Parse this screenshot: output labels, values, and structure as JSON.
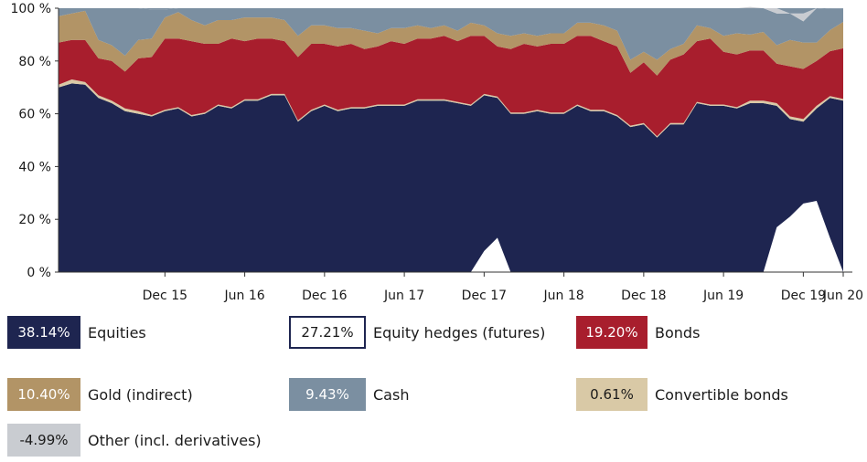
{
  "chart_data": {
    "type": "area",
    "stacked": true,
    "ylim": [
      0,
      100
    ],
    "yticks": [
      "0 %",
      "20 %",
      "40 %",
      "60 %",
      "80 %",
      "100 %"
    ],
    "ytick_values": [
      0,
      20,
      40,
      60,
      80,
      100
    ],
    "xticks": [
      "Dec 15",
      "Jun 16",
      "Dec 16",
      "Jun 17",
      "Dec 17",
      "Jun 18",
      "Dec 18",
      "Jun 19",
      "Dec 19",
      "Jun 20"
    ],
    "x_start": "2015-04",
    "x_end": "2020-06",
    "grid": false,
    "legend_position": "bottom",
    "series": [
      {
        "name": "Equities",
        "color": "#1e2550",
        "values": [
          70,
          71.5,
          71,
          66,
          64,
          61,
          60,
          59,
          61,
          62,
          59,
          60,
          63,
          62,
          65,
          65,
          67,
          67,
          57,
          61,
          63,
          61,
          62,
          62,
          63,
          63,
          63,
          65,
          65,
          65,
          64,
          63,
          67,
          66,
          60,
          60,
          61,
          60,
          60,
          63,
          61,
          61,
          59,
          55,
          56,
          51,
          56,
          56,
          64,
          63,
          63,
          62,
          64,
          64,
          63,
          58,
          57,
          62,
          66,
          65
        ]
      },
      {
        "name": "Convertible bonds",
        "color": "#d9c9a6",
        "values": [
          1,
          1.5,
          1,
          1,
          1,
          1,
          1,
          0.5,
          0.5,
          0.5,
          0.5,
          0.5,
          0.5,
          0.5,
          0.5,
          0.5,
          0.5,
          0.5,
          0.5,
          0.5,
          0.5,
          0.5,
          0.5,
          0.5,
          0.5,
          0.5,
          0.5,
          0.5,
          0.5,
          0.5,
          0.5,
          0.5,
          0.5,
          0.5,
          0.5,
          0.5,
          0.5,
          0.5,
          0.5,
          0.5,
          0.5,
          0.5,
          0.5,
          0.5,
          0.5,
          0.5,
          0.5,
          0.5,
          0.5,
          0.5,
          0.5,
          0.5,
          1,
          1,
          1,
          1,
          1,
          1,
          0.7,
          0.6
        ]
      },
      {
        "name": "Bonds",
        "color": "#a81e2d",
        "values": [
          16,
          15,
          16,
          14,
          15,
          14,
          20,
          22,
          27,
          26,
          28,
          26,
          23,
          26,
          22,
          23,
          21,
          20,
          24,
          25,
          23,
          24,
          24,
          22,
          22,
          24,
          23,
          23,
          23,
          24,
          23,
          26,
          22,
          19,
          24,
          26,
          24,
          26,
          26,
          26,
          28,
          26,
          26,
          20,
          23,
          23,
          24,
          26,
          23,
          25,
          20,
          20,
          19,
          19,
          15,
          19,
          19,
          17,
          17,
          19.2
        ]
      },
      {
        "name": "Gold (indirect)",
        "color": "#b29466",
        "values": [
          10,
          10,
          11,
          7,
          6,
          6,
          7,
          7,
          8,
          10,
          8,
          7,
          9,
          7,
          9,
          8,
          8,
          8,
          8,
          7,
          7,
          7,
          6,
          7,
          5,
          5,
          6,
          5,
          4,
          4,
          4,
          5,
          4,
          5,
          5,
          4,
          4,
          4,
          4,
          5,
          5,
          6,
          6,
          5,
          4,
          6,
          4,
          4,
          6,
          4,
          6,
          8,
          6,
          7,
          7,
          10,
          10,
          7,
          8,
          10
        ]
      },
      {
        "name": "Cash",
        "color": "#7b8fa1",
        "values": [
          3,
          2,
          1,
          12,
          14,
          18,
          12,
          11,
          3,
          1.5,
          4.5,
          6.5,
          4.5,
          4.5,
          3.5,
          3.5,
          3.5,
          4.5,
          10.5,
          6.5,
          6.5,
          7.5,
          7.5,
          8.5,
          9.5,
          7.5,
          7.5,
          6.5,
          7.5,
          6.5,
          8.5,
          5.5,
          6.5,
          9.5,
          10.5,
          9.5,
          10.5,
          9.5,
          9.5,
          5.5,
          5.5,
          6.5,
          8.5,
          19.5,
          16.5,
          19.5,
          15.5,
          13.5,
          6.5,
          7.5,
          10.5,
          9.5,
          10.5,
          9,
          12,
          10,
          8,
          13,
          8,
          5
        ]
      },
      {
        "name": "Other (incl. derivatives)",
        "color": "#c9ccd1",
        "values": [
          0,
          0,
          0,
          0,
          0,
          0,
          0,
          0,
          0,
          0,
          0,
          0,
          0,
          0,
          0,
          0,
          0,
          0,
          0,
          0,
          0,
          0,
          0,
          0,
          0,
          0,
          0,
          0,
          0,
          0,
          0,
          0,
          0,
          0,
          0,
          0,
          0,
          0,
          0,
          0,
          0,
          0,
          0,
          0,
          0,
          0,
          0,
          0,
          0,
          0,
          0,
          0,
          0,
          0,
          2,
          0,
          3,
          0,
          0,
          0
        ]
      },
      {
        "name": "Equity hedges (futures)",
        "color": "#ffffff",
        "values": [
          0,
          0,
          0,
          0,
          0,
          0,
          0,
          0,
          0,
          0,
          0,
          0,
          0,
          0,
          0,
          0,
          0,
          0,
          0,
          0,
          0,
          0,
          0,
          0,
          0,
          0,
          0,
          0,
          0,
          0,
          0,
          0,
          0,
          0,
          0,
          0,
          0,
          0,
          0,
          0,
          0,
          0,
          0,
          0,
          0,
          0,
          0,
          0,
          0,
          0,
          0,
          0,
          0,
          0,
          0,
          0,
          0,
          0,
          0,
          0,
          0,
          0,
          0,
          0,
          0
        ],
        "overlay_from_zero": [
          0,
          0,
          0,
          0,
          0,
          0,
          0,
          0,
          0,
          0,
          0,
          0,
          0,
          0,
          0,
          0,
          0,
          0,
          0,
          0,
          0,
          0,
          0,
          0,
          0,
          0,
          0,
          0,
          0,
          0,
          0,
          0,
          8,
          13,
          0,
          0,
          0,
          0,
          0,
          0,
          0,
          0,
          0,
          0,
          0,
          0,
          0,
          0,
          0,
          0,
          0,
          0,
          0,
          0,
          17,
          21,
          26,
          27,
          13,
          0
        ]
      }
    ]
  },
  "legend": [
    {
      "value": "38.14%",
      "label": "Equities",
      "color": "#1e2550",
      "text_color": "#ffffff",
      "outlined": false
    },
    {
      "value": "27.21%",
      "label": "Equity hedges (futures)",
      "color": "#ffffff",
      "text_color": "#1a1a1a",
      "outlined": true
    },
    {
      "value": "19.20%",
      "label": "Bonds",
      "color": "#a81e2d",
      "text_color": "#ffffff",
      "outlined": false
    },
    {
      "value": "10.40%",
      "label": "Gold (indirect)",
      "color": "#b29466",
      "text_color": "#ffffff",
      "outlined": false
    },
    {
      "value": "9.43%",
      "label": "Cash",
      "color": "#7b8fa1",
      "text_color": "#ffffff",
      "outlined": false
    },
    {
      "value": "0.61%",
      "label": "Convertible bonds",
      "color": "#d9c9a6",
      "text_color": "#1a1a1a",
      "outlined": false
    },
    {
      "value": "-4.99%",
      "label": "Other (incl. derivatives)",
      "color": "#c9ccd1",
      "text_color": "#1a1a1a",
      "outlined": false
    }
  ]
}
